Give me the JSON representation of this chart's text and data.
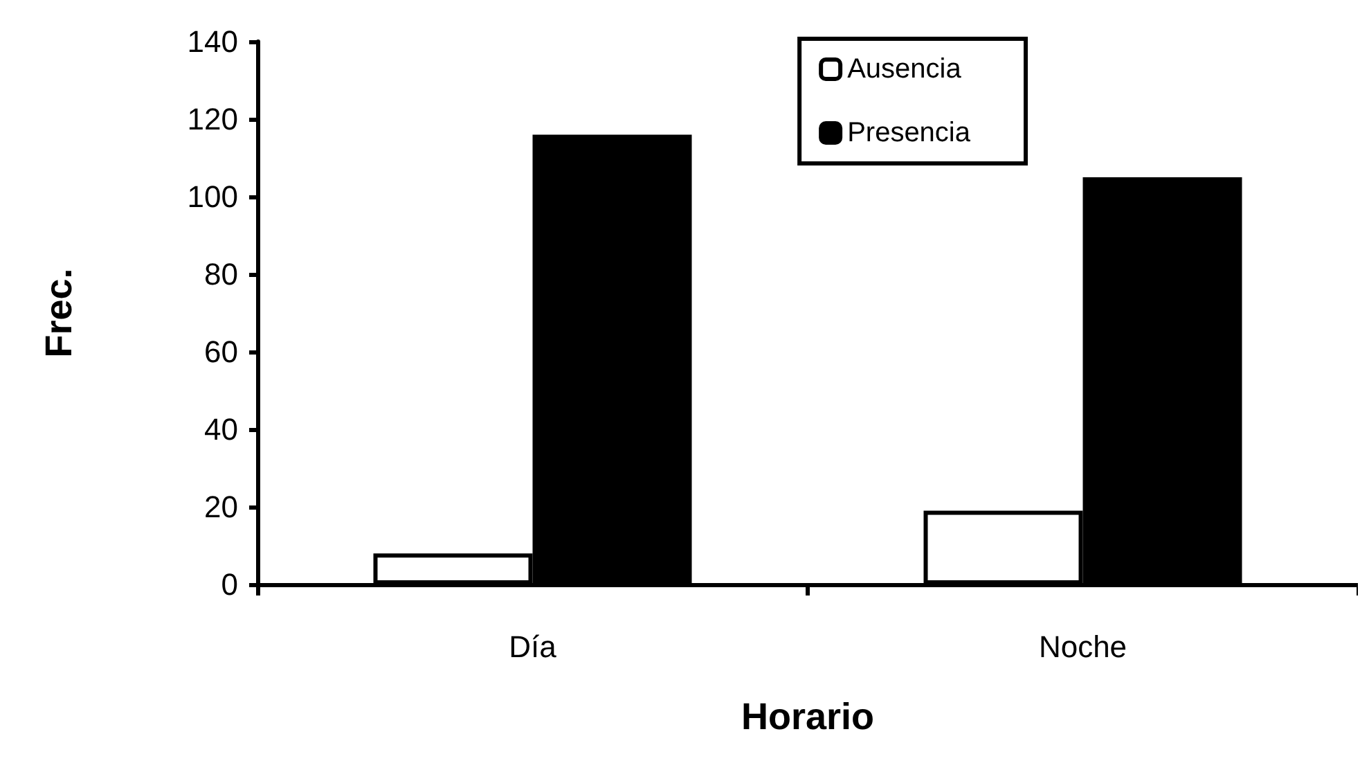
{
  "chart_data": {
    "type": "bar",
    "xlabel": "Horario",
    "ylabel": "Frec.",
    "categories": [
      "Día",
      "Noche"
    ],
    "series": [
      {
        "name": "Ausencia",
        "color": "#ffffff",
        "values": [
          8,
          19
        ]
      },
      {
        "name": "Presencia",
        "color": "#000000",
        "values": [
          116,
          105
        ]
      }
    ],
    "ylim": [
      0,
      140
    ],
    "yticks": [
      0,
      20,
      40,
      60,
      80,
      100,
      120,
      140
    ],
    "grid": false,
    "legend": "top right"
  }
}
